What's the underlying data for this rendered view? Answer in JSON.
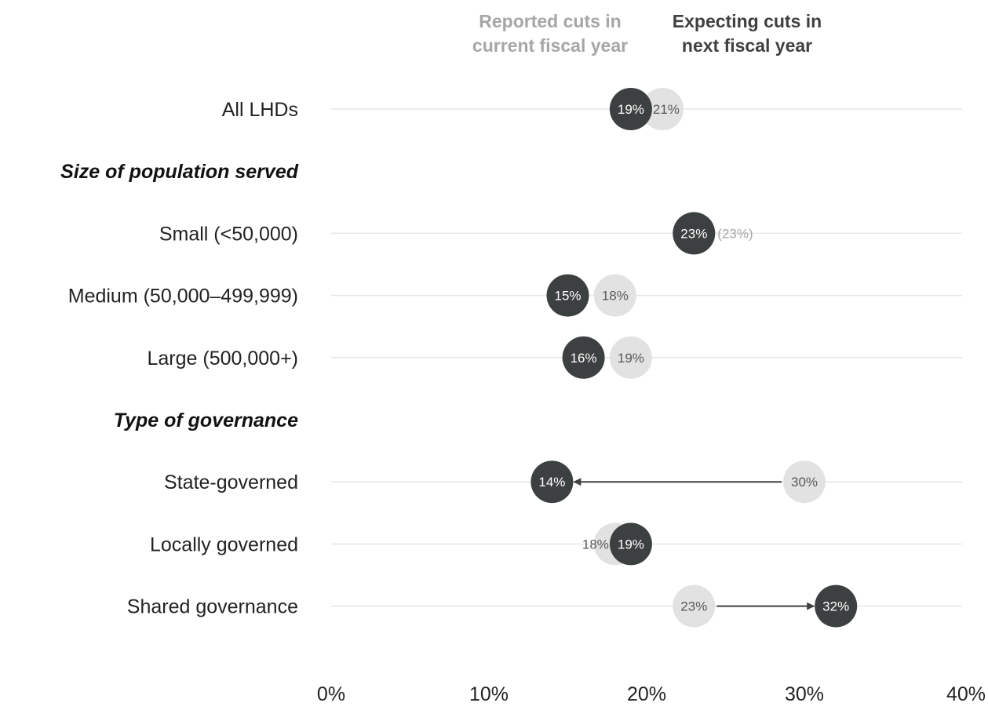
{
  "chart_data": {
    "type": "dot",
    "title": "",
    "xlabel": "",
    "ylabel": "",
    "xlim": [
      0,
      40
    ],
    "x_ticks": [
      "0%",
      "10%",
      "20%",
      "30%",
      "40%"
    ],
    "grid": true,
    "legend": {
      "placement": "top",
      "current": "Reported cuts in current fiscal year",
      "next": "Expecting cuts in next fiscal year"
    },
    "colors": {
      "current": "#e2e2e2",
      "next": "#3c4040",
      "gridline": "#e6e6e6",
      "arrow": "#404040"
    },
    "rows": [
      {
        "kind": "data",
        "label": "All LHDs",
        "current": 21,
        "next": 19,
        "current_label": "21%",
        "next_label": "19%"
      },
      {
        "kind": "group",
        "label": "Size of population served"
      },
      {
        "kind": "data",
        "label": "Small (<50,000)",
        "current": 23,
        "next": 23,
        "current_label": "(23%)",
        "next_label": "23%"
      },
      {
        "kind": "data",
        "label": "Medium (50,000–499,999)",
        "current": 18,
        "next": 15,
        "current_label": "18%",
        "next_label": "15%"
      },
      {
        "kind": "data",
        "label": "Large (500,000+)",
        "current": 19,
        "next": 16,
        "current_label": "19%",
        "next_label": "16%"
      },
      {
        "kind": "group",
        "label": "Type of governance"
      },
      {
        "kind": "data",
        "label": "State-governed",
        "current": 30,
        "next": 14,
        "current_label": "30%",
        "next_label": "14%"
      },
      {
        "kind": "data",
        "label": "Locally governed",
        "current": 18,
        "next": 19,
        "current_label": "18%",
        "next_label": "19%"
      },
      {
        "kind": "data",
        "label": "Shared governance",
        "current": 23,
        "next": 32,
        "current_label": "23%",
        "next_label": "32%"
      }
    ]
  }
}
